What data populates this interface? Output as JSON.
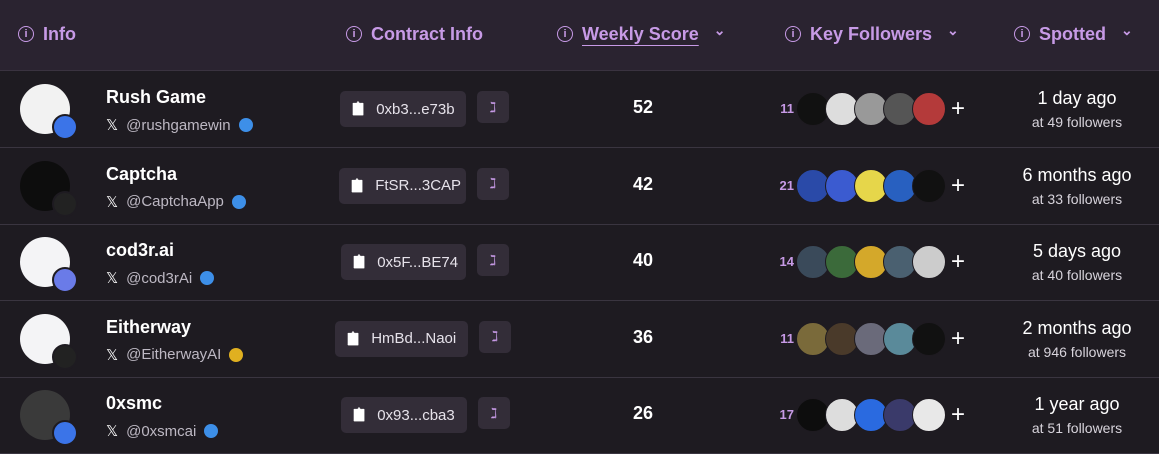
{
  "header": {
    "columns": [
      "Info",
      "Contract Info",
      "Weekly Score",
      "Key Followers",
      "Spotted"
    ]
  },
  "table": {
    "rows": [
      {
        "name": "Rush Game",
        "handle": "@rushgamewin",
        "contract": "0xb3...e73b",
        "score": "52",
        "followers": "11",
        "spotted": "1 day ago",
        "spotted_note": "at 49 followers"
      },
      {
        "name": "Captcha",
        "handle": "@CaptchaApp",
        "contract": "FtSR...3CAP",
        "score": "42",
        "followers": "21",
        "spotted": "6 months ago",
        "spotted_note": "at 33 followers"
      },
      {
        "name": "cod3r.ai",
        "handle": "@cod3rAi",
        "contract": "0x5F...BE74",
        "score": "40",
        "followers": "14",
        "spotted": "5 days ago",
        "spotted_note": "at 40 followers"
      },
      {
        "name": "Eitherway",
        "handle": "@EitherwayAI",
        "contract": "HmBd...Naoi",
        "score": "36",
        "followers": "11",
        "spotted": "2 months ago",
        "spotted_note": "at 946 followers"
      },
      {
        "name": "0xsmc",
        "handle": "@0xsmcai",
        "contract": "0x93...cba3",
        "score": "26",
        "followers": "17",
        "spotted": "1 year ago",
        "spotted_note": "at 51 followers"
      }
    ]
  }
}
